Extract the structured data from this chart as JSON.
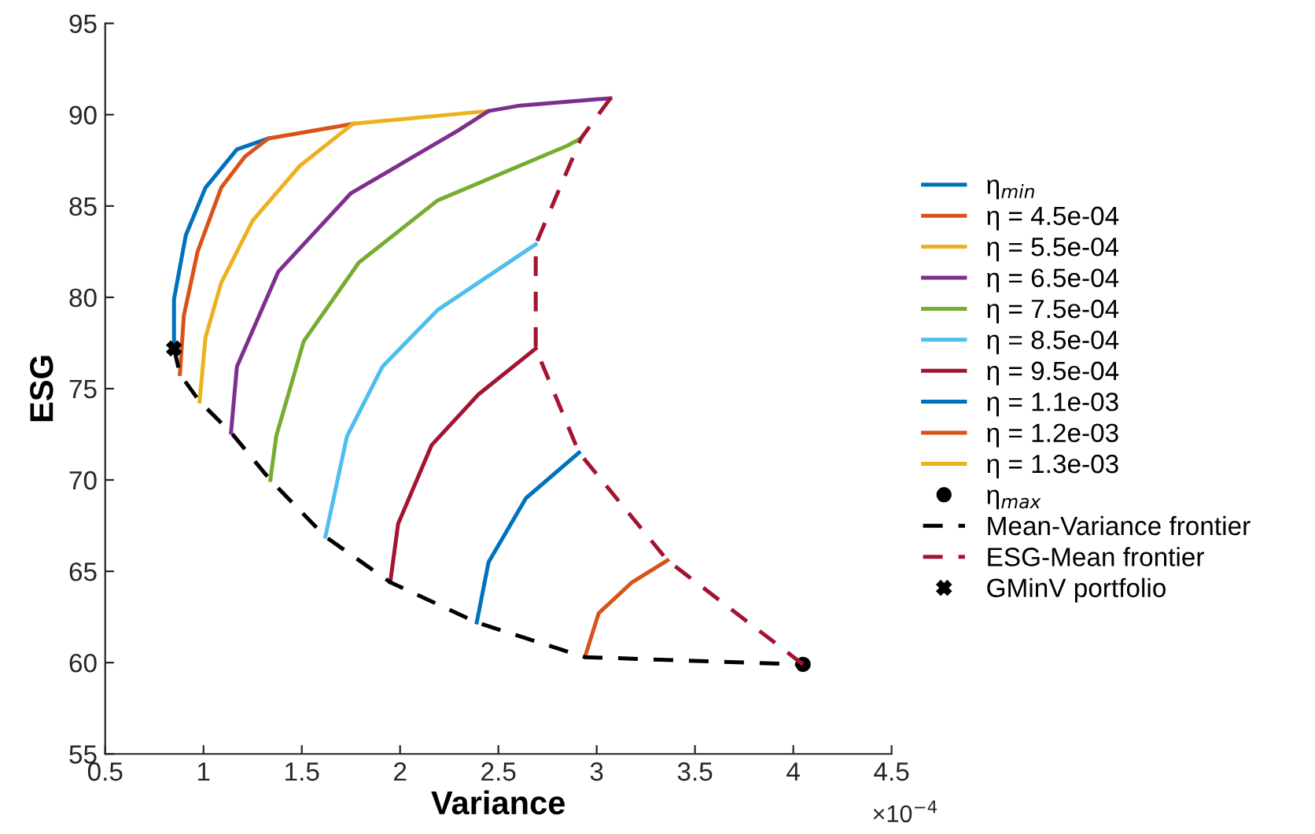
{
  "chart_data": {
    "type": "line",
    "xlabel": "Variance",
    "ylabel": "ESG",
    "xlim": [
      0.5,
      4.5
    ],
    "ylim": [
      55,
      95
    ],
    "xticks": [
      0.5,
      1,
      1.5,
      2,
      2.5,
      3,
      3.5,
      4,
      4.5
    ],
    "yticks": [
      55,
      60,
      65,
      70,
      75,
      80,
      85,
      90,
      95
    ],
    "grid": false,
    "legend": "right",
    "line_style": "solid",
    "marker": "none",
    "annotations": [
      "×10$^{−4}$"
    ],
    "series": [
      {
        "name": "η$_{min}$",
        "color": "#0072bd",
        "x": [
          0.85,
          0.85,
          0.91,
          1.01,
          1.17,
          1.33
        ],
        "values": [
          77.2,
          79.9,
          83.4,
          86.0,
          88.1,
          88.7
        ]
      },
      {
        "name": "η = 4.5e-04",
        "color": "#d95319",
        "x": [
          0.88,
          0.9,
          0.97,
          1.09,
          1.21,
          1.33,
          1.76
        ],
        "values": [
          75.8,
          79.0,
          82.5,
          86.0,
          87.7,
          88.7,
          89.5
        ]
      },
      {
        "name": "η = 5.5e-04",
        "color": "#edb120",
        "x": [
          0.98,
          1.01,
          1.09,
          1.25,
          1.49,
          1.76,
          2.45
        ],
        "values": [
          74.3,
          77.8,
          80.8,
          84.2,
          87.2,
          89.5,
          90.2
        ]
      },
      {
        "name": "η = 6.5e-04",
        "color": "#7e2f8e",
        "x": [
          1.14,
          1.17,
          1.38,
          1.75,
          2.29,
          2.45,
          2.61,
          3.07
        ],
        "values": [
          72.6,
          76.2,
          81.4,
          85.7,
          89.1,
          90.2,
          90.5,
          90.9
        ]
      },
      {
        "name": "η = 7.5e-04",
        "color": "#77ac30",
        "x": [
          1.34,
          1.37,
          1.51,
          1.79,
          2.19,
          2.85,
          2.92
        ],
        "values": [
          70.0,
          72.4,
          77.6,
          81.9,
          85.3,
          88.3,
          88.7
        ]
      },
      {
        "name": "η = 8.5e-04",
        "color": "#4dbeee",
        "x": [
          1.62,
          1.73,
          1.91,
          2.19,
          2.69
        ],
        "values": [
          66.9,
          72.4,
          76.2,
          79.3,
          82.9
        ]
      },
      {
        "name": "η = 9.5e-04",
        "color": "#a2142f",
        "x": [
          1.95,
          1.99,
          2.16,
          2.4,
          2.69
        ],
        "values": [
          64.4,
          67.6,
          71.9,
          74.7,
          77.2
        ]
      },
      {
        "name": "η = 1.1e-03",
        "color": "#0072bd",
        "x": [
          2.39,
          2.45,
          2.64,
          2.91
        ],
        "values": [
          62.2,
          65.5,
          69.0,
          71.5
        ]
      },
      {
        "name": "η = 1.2e-03",
        "color": "#d95319",
        "x": [
          2.94,
          3.01,
          3.18,
          3.36
        ],
        "values": [
          60.3,
          62.7,
          64.4,
          65.6
        ]
      },
      {
        "name": "η = 1.3e-03",
        "color": "#edb120"
      },
      {
        "name": "η$_{max}$",
        "type": "scatter",
        "marker": "circle",
        "color": "#000000",
        "x": [
          4.05
        ],
        "values": [
          59.9
        ]
      },
      {
        "name": "Mean-Variance frontier",
        "color": "#000000",
        "line_style": "dashed",
        "x": [
          0.85,
          0.88,
          0.98,
          1.14,
          1.34,
          1.62,
          1.95,
          2.39,
          2.94,
          4.05
        ],
        "values": [
          77.2,
          75.8,
          74.3,
          72.6,
          70.0,
          66.9,
          64.4,
          62.2,
          60.3,
          59.9
        ]
      },
      {
        "name": "ESG-Mean frontier",
        "color": "#a2142f",
        "line_style": "dashed",
        "x": [
          3.07,
          2.92,
          2.69,
          2.69,
          2.91,
          3.36,
          4.05
        ],
        "values": [
          90.9,
          88.7,
          82.9,
          77.2,
          71.5,
          65.6,
          59.9
        ]
      },
      {
        "name": "GMinV portfolio",
        "type": "scatter",
        "marker": "cross",
        "color": "#000000",
        "x": [
          0.85
        ],
        "values": [
          77.2
        ]
      }
    ]
  }
}
